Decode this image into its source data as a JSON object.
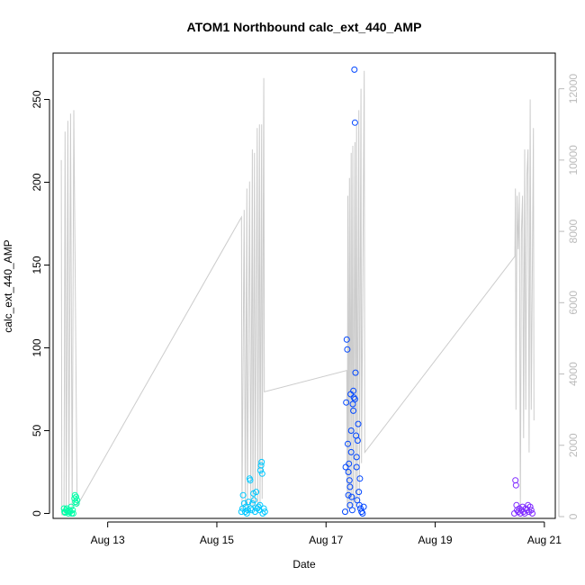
{
  "chart_data": {
    "type": "scatter",
    "title": "ATOM1 Northbound calc_ext_440_AMP",
    "xlabel": "Date",
    "ylabel": "calc_ext_440_AMP",
    "x_ticks": [
      "Aug 13",
      "Aug 15",
      "Aug 17",
      "Aug 19",
      "Aug 21"
    ],
    "x_tick_days": [
      13,
      15,
      17,
      19,
      21
    ],
    "xlim": [
      12.0,
      21.2
    ],
    "ylim": [
      -3,
      278
    ],
    "y_ticks": [
      0,
      50,
      100,
      150,
      200,
      250
    ],
    "y2lim": [
      -50,
      13000
    ],
    "y2_ticks": [
      0,
      2000,
      4000,
      6000,
      8000,
      10000,
      12000
    ],
    "y2_color": "#bbbbbb",
    "grid": false,
    "series": [
      {
        "color": "#00ffa8",
        "points": [
          [
            12.2,
            3
          ],
          [
            12.21,
            1
          ],
          [
            12.22,
            0.5
          ],
          [
            12.24,
            2
          ],
          [
            12.25,
            3
          ],
          [
            12.27,
            1
          ],
          [
            12.28,
            0
          ],
          [
            12.3,
            2
          ],
          [
            12.31,
            1
          ],
          [
            12.33,
            4
          ],
          [
            12.34,
            0
          ],
          [
            12.36,
            2
          ],
          [
            12.37,
            0
          ],
          [
            12.39,
            9
          ],
          [
            12.4,
            11
          ],
          [
            12.41,
            7
          ],
          [
            12.42,
            10
          ],
          [
            12.43,
            6
          ],
          [
            12.44,
            8
          ]
        ]
      },
      {
        "color": "#00c8ff",
        "points": [
          [
            15.45,
            1
          ],
          [
            15.47,
            3
          ],
          [
            15.48,
            11
          ],
          [
            15.5,
            6
          ],
          [
            15.52,
            1
          ],
          [
            15.53,
            4
          ],
          [
            15.55,
            0
          ],
          [
            15.57,
            2
          ],
          [
            15.58,
            7
          ],
          [
            15.6,
            21
          ],
          [
            15.61,
            20
          ],
          [
            15.62,
            3
          ],
          [
            15.64,
            2
          ],
          [
            15.65,
            6
          ],
          [
            15.67,
            12
          ],
          [
            15.68,
            8
          ],
          [
            15.7,
            1
          ],
          [
            15.72,
            13
          ],
          [
            15.74,
            3
          ],
          [
            15.76,
            4
          ],
          [
            15.78,
            2
          ],
          [
            15.79,
            5
          ],
          [
            15.8,
            26
          ],
          [
            15.81,
            29
          ],
          [
            15.82,
            31
          ],
          [
            15.83,
            24
          ],
          [
            15.84,
            0
          ],
          [
            15.86,
            3
          ],
          [
            15.88,
            1
          ]
        ]
      },
      {
        "color": "#0046ff",
        "points": [
          [
            17.35,
            1
          ],
          [
            17.36,
            28
          ],
          [
            17.37,
            67
          ],
          [
            17.38,
            105
          ],
          [
            17.39,
            99
          ],
          [
            17.4,
            42
          ],
          [
            17.41,
            25
          ],
          [
            17.42,
            30
          ],
          [
            17.43,
            20
          ],
          [
            17.44,
            16
          ],
          [
            17.45,
            72
          ],
          [
            17.46,
            37
          ],
          [
            17.47,
            10
          ],
          [
            17.48,
            2
          ],
          [
            17.49,
            66
          ],
          [
            17.5,
            74
          ],
          [
            17.51,
            70
          ],
          [
            17.52,
            268
          ],
          [
            17.53,
            236
          ],
          [
            17.54,
            85
          ],
          [
            17.55,
            47
          ],
          [
            17.56,
            28
          ],
          [
            17.57,
            8
          ],
          [
            17.58,
            44
          ],
          [
            17.59,
            54
          ],
          [
            17.6,
            13
          ],
          [
            17.61,
            5
          ],
          [
            17.62,
            21
          ],
          [
            17.63,
            3
          ],
          [
            17.65,
            1
          ],
          [
            17.67,
            0
          ],
          [
            17.69,
            4
          ],
          [
            17.46,
            50
          ],
          [
            17.5,
            62
          ],
          [
            17.53,
            69
          ],
          [
            17.56,
            34
          ],
          [
            17.41,
            11
          ],
          [
            17.44,
            5
          ]
        ]
      },
      {
        "color": "#7f2bff",
        "points": [
          [
            20.45,
            0
          ],
          [
            20.47,
            20
          ],
          [
            20.48,
            17
          ],
          [
            20.49,
            5
          ],
          [
            20.5,
            2
          ],
          [
            20.52,
            1
          ],
          [
            20.54,
            3
          ],
          [
            20.56,
            0
          ],
          [
            20.58,
            2
          ],
          [
            20.6,
            4
          ],
          [
            20.62,
            1
          ],
          [
            20.64,
            0
          ],
          [
            20.66,
            3
          ],
          [
            20.68,
            2
          ],
          [
            20.7,
            5
          ],
          [
            20.72,
            1
          ],
          [
            20.74,
            4
          ],
          [
            20.76,
            2
          ],
          [
            20.78,
            0
          ]
        ]
      }
    ],
    "line": {
      "color": "#cccccc",
      "axis": "right",
      "points": [
        [
          12.15,
          10000
        ],
        [
          12.16,
          50
        ],
        [
          12.2,
          50
        ],
        [
          12.22,
          10800
        ],
        [
          12.24,
          100
        ],
        [
          12.27,
          11100
        ],
        [
          12.29,
          50
        ],
        [
          12.32,
          11300
        ],
        [
          12.35,
          80
        ],
        [
          12.38,
          11400
        ],
        [
          12.44,
          300
        ],
        [
          15.45,
          8400
        ],
        [
          15.46,
          200
        ],
        [
          15.5,
          8600
        ],
        [
          15.52,
          300
        ],
        [
          15.55,
          9200
        ],
        [
          15.56,
          100
        ],
        [
          15.6,
          9400
        ],
        [
          15.62,
          300
        ],
        [
          15.65,
          10300
        ],
        [
          15.66,
          200
        ],
        [
          15.69,
          10200
        ],
        [
          15.7,
          200
        ],
        [
          15.74,
          10900
        ],
        [
          15.75,
          300
        ],
        [
          15.78,
          11000
        ],
        [
          15.79,
          300
        ],
        [
          15.82,
          11000
        ],
        [
          15.83,
          500
        ],
        [
          15.86,
          12300
        ],
        [
          15.87,
          3500
        ],
        [
          17.38,
          4100
        ],
        [
          17.39,
          100
        ],
        [
          17.4,
          9000
        ],
        [
          17.41,
          200
        ],
        [
          17.43,
          9500
        ],
        [
          17.44,
          300
        ],
        [
          17.46,
          10200
        ],
        [
          17.47,
          200
        ],
        [
          17.49,
          10400
        ],
        [
          17.5,
          300
        ],
        [
          17.53,
          10500
        ],
        [
          17.54,
          200
        ],
        [
          17.56,
          11000
        ],
        [
          17.57,
          400
        ],
        [
          17.6,
          11400
        ],
        [
          17.61,
          300
        ],
        [
          17.64,
          12000
        ],
        [
          17.65,
          1500
        ],
        [
          17.7,
          12500
        ],
        [
          17.71,
          1800
        ],
        [
          20.46,
          7300
        ],
        [
          20.47,
          9200
        ],
        [
          20.48,
          3000
        ],
        [
          20.5,
          9000
        ],
        [
          20.52,
          7500
        ],
        [
          20.54,
          9100
        ],
        [
          20.56,
          200
        ],
        [
          20.58,
          8000
        ],
        [
          20.6,
          9000
        ],
        [
          20.62,
          2200
        ],
        [
          20.64,
          10300
        ],
        [
          20.66,
          3000
        ],
        [
          20.68,
          9600
        ],
        [
          20.7,
          10300
        ],
        [
          20.72,
          1800
        ],
        [
          20.74,
          11700
        ],
        [
          20.76,
          3000
        ],
        [
          20.8,
          10900
        ],
        [
          20.81,
          2700
        ]
      ]
    }
  }
}
